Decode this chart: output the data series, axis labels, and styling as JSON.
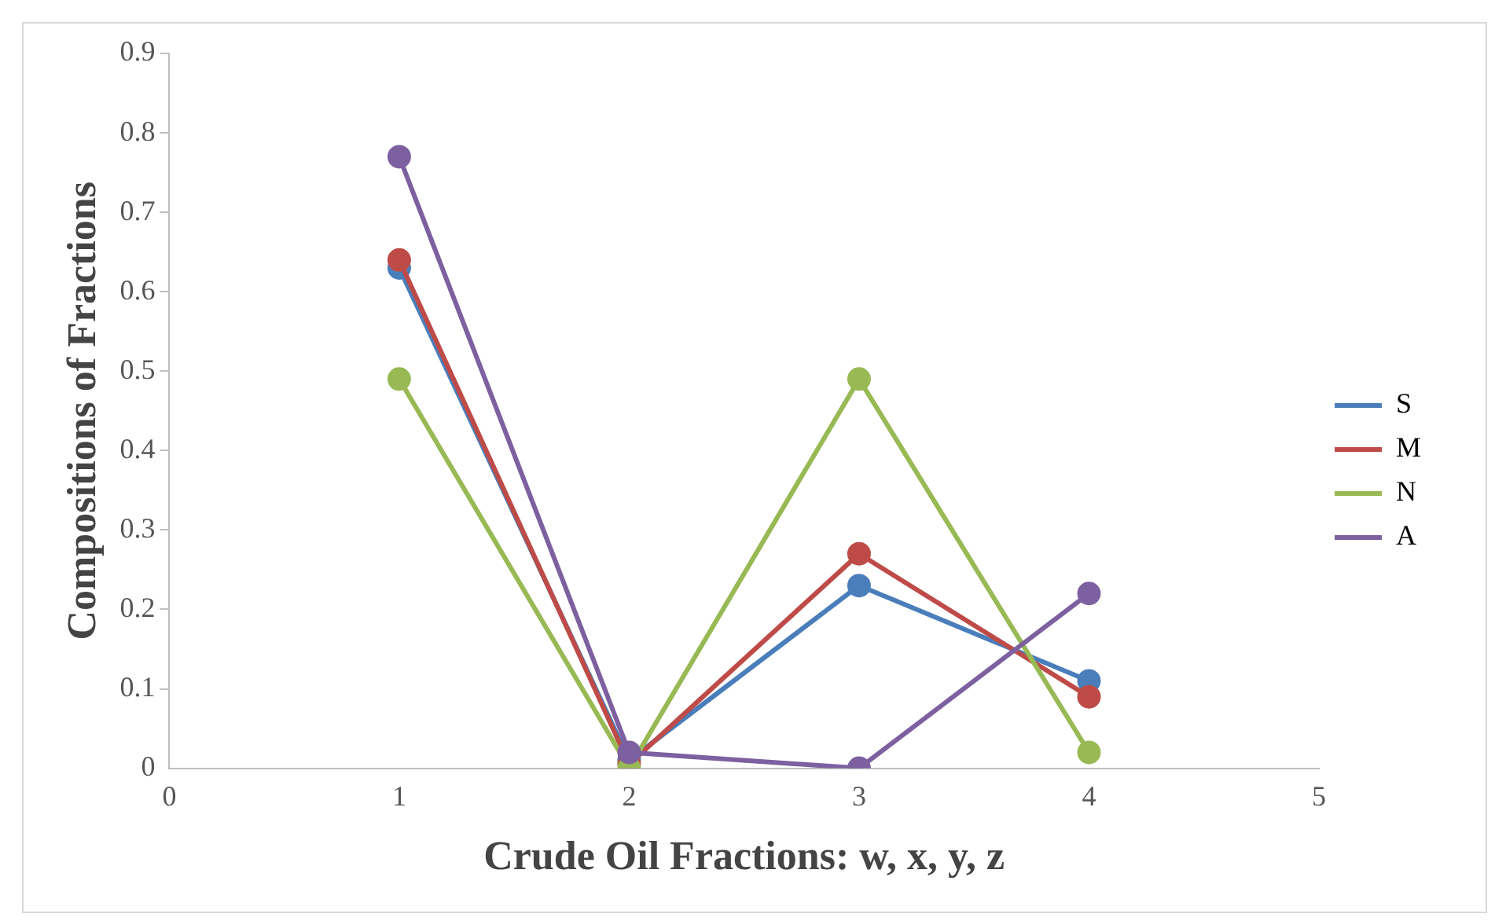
{
  "chart_data": {
    "type": "line",
    "xlabel": "Crude Oil Fractions: w, x, y, z",
    "ylabel": "Compositions of Fractions",
    "x": [
      1,
      2,
      3,
      4
    ],
    "xlim": [
      0,
      5
    ],
    "xticks": [
      0,
      1,
      2,
      3,
      4,
      5
    ],
    "ylim": [
      0,
      0.9
    ],
    "yticks": [
      0,
      0.1,
      0.2,
      0.3,
      0.4,
      0.5,
      0.6,
      0.7,
      0.8,
      0.9
    ],
    "grid": false,
    "legend": "right",
    "marker": "circle",
    "line_style": "solid",
    "series": [
      {
        "name": "S",
        "color": "#4a7ebb",
        "values": [
          0.63,
          0.01,
          0.23,
          0.11
        ]
      },
      {
        "name": "M",
        "color": "#be4b48",
        "values": [
          0.64,
          0.005,
          0.27,
          0.09
        ]
      },
      {
        "name": "N",
        "color": "#98b954",
        "values": [
          0.49,
          0,
          0.49,
          0.02
        ]
      },
      {
        "name": "A",
        "color": "#7d60a0",
        "values": [
          0.77,
          0.02,
          0,
          0.22
        ]
      }
    ]
  }
}
